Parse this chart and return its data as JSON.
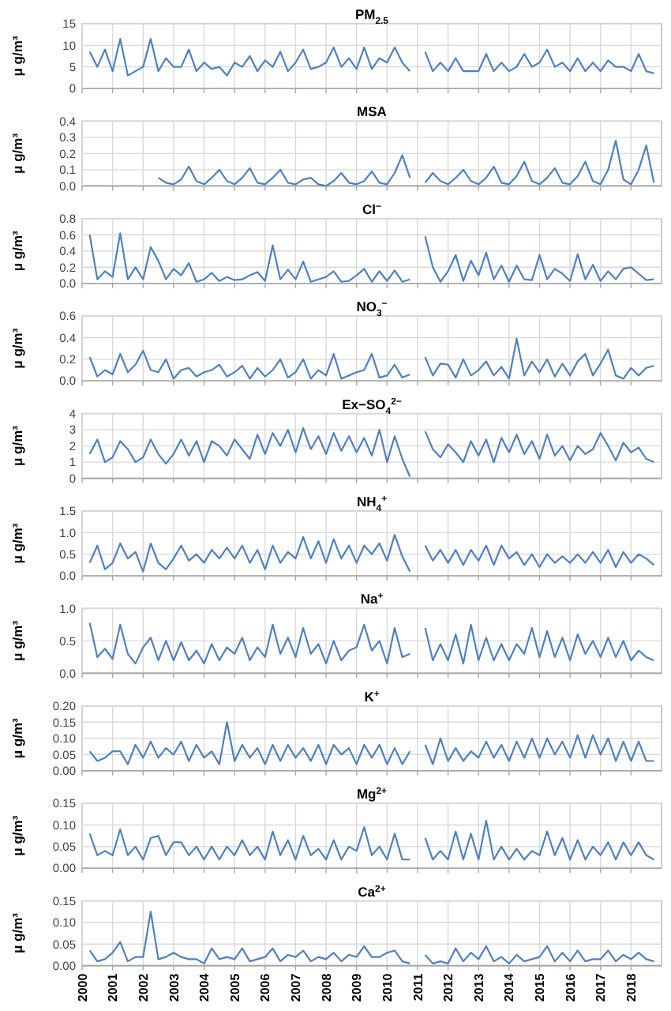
{
  "chart_data": [
    {
      "type": "line",
      "title": "PM$_{2.5}$",
      "ylabel": "μ g/m³",
      "grid": true,
      "tick_labels": "y",
      "xlim": [
        2000,
        2019
      ],
      "xticks": [
        2000,
        2001,
        2002,
        2003,
        2004,
        2005,
        2006,
        2007,
        2008,
        2009,
        2010,
        2011,
        2012,
        2013,
        2014,
        2015,
        2016,
        2017,
        2018
      ],
      "ylim": [
        0,
        15
      ],
      "yticks": [
        0,
        5,
        10,
        15
      ],
      "x": [
        2000.25,
        2000.5,
        2000.75,
        2001,
        2001.25,
        2001.5,
        2001.75,
        2002,
        2002.25,
        2002.5,
        2002.75,
        2003,
        2003.25,
        2003.5,
        2003.75,
        2004,
        2004.25,
        2004.5,
        2004.75,
        2005,
        2005.25,
        2005.5,
        2005.75,
        2006,
        2006.25,
        2006.5,
        2006.75,
        2007,
        2007.25,
        2007.5,
        2007.75,
        2008,
        2008.25,
        2008.5,
        2008.75,
        2009,
        2009.25,
        2009.5,
        2009.75,
        2010,
        2010.25,
        2010.5,
        2010.75,
        2011,
        2011.25,
        2011.5,
        2011.75,
        2012,
        2012.25,
        2012.5,
        2012.75,
        2013,
        2013.25,
        2013.5,
        2013.75,
        2014,
        2014.25,
        2014.5,
        2014.75,
        2015,
        2015.25,
        2015.5,
        2015.75,
        2016,
        2016.25,
        2016.5,
        2016.75,
        2017,
        2017.25,
        2017.5,
        2017.75,
        2018,
        2018.25,
        2018.5,
        2018.75
      ],
      "series": [
        {
          "color": "#4f81bd",
          "values": [
            8.5,
            5,
            9,
            4,
            11.5,
            3,
            4,
            5,
            11.5,
            4,
            7,
            5,
            5,
            9,
            4,
            6,
            4.5,
            5,
            3,
            6,
            5,
            7.5,
            4,
            6.5,
            5,
            8.5,
            4,
            6,
            9,
            4.5,
            5,
            6,
            9.5,
            5,
            7,
            4.5,
            9.5,
            4.5,
            7,
            6,
            9.5,
            6,
            4,
            null,
            8.5,
            4,
            6,
            4,
            7,
            4,
            4,
            4,
            8,
            4,
            6,
            4,
            5,
            8,
            5,
            6,
            9,
            5,
            6,
            4,
            7,
            4,
            6,
            4,
            6.5,
            5,
            5,
            4,
            8,
            4,
            3.5
          ]
        }
      ]
    },
    {
      "type": "line",
      "title": "MSA",
      "ylabel": "μ g/m³",
      "grid": true,
      "tick_labels": "y",
      "xlim": [
        2000,
        2019
      ],
      "xticks": [
        2000,
        2001,
        2002,
        2003,
        2004,
        2005,
        2006,
        2007,
        2008,
        2009,
        2010,
        2011,
        2012,
        2013,
        2014,
        2015,
        2016,
        2017,
        2018
      ],
      "ylim": [
        0,
        0.4
      ],
      "yticks": [
        {
          "value": 0,
          "label": "0.0"
        },
        {
          "value": 0.1,
          "label": "0.1"
        },
        {
          "value": 0.2,
          "label": "0.2"
        },
        {
          "value": 0.3,
          "label": "0.3"
        },
        {
          "value": 0.4,
          "label": "0.4"
        }
      ],
      "x": [
        2002.5,
        2002.75,
        2003,
        2003.25,
        2003.5,
        2003.75,
        2004,
        2004.25,
        2004.5,
        2004.75,
        2005,
        2005.25,
        2005.5,
        2005.75,
        2006,
        2006.25,
        2006.5,
        2006.75,
        2007,
        2007.25,
        2007.5,
        2007.75,
        2008,
        2008.25,
        2008.5,
        2008.75,
        2009,
        2009.25,
        2009.5,
        2009.75,
        2010,
        2010.25,
        2010.5,
        2010.75,
        2011,
        2011.25,
        2011.5,
        2011.75,
        2012,
        2012.25,
        2012.5,
        2012.75,
        2013,
        2013.25,
        2013.5,
        2013.75,
        2014,
        2014.25,
        2014.5,
        2014.75,
        2015,
        2015.25,
        2015.5,
        2015.75,
        2016,
        2016.25,
        2016.5,
        2016.75,
        2017,
        2017.25,
        2017.5,
        2017.75,
        2018,
        2018.25,
        2018.5,
        2018.75
      ],
      "series": [
        {
          "color": "#4f81bd",
          "values": [
            0.05,
            0.02,
            0.01,
            0.04,
            0.12,
            0.03,
            0.01,
            0.05,
            0.1,
            0.03,
            0.01,
            0.05,
            0.11,
            0.02,
            0.01,
            0.05,
            0.1,
            0.02,
            0.01,
            0.04,
            0.05,
            0.01,
            0,
            0.03,
            0.08,
            0.02,
            0.01,
            0.03,
            0.09,
            0.02,
            0.01,
            0.08,
            0.19,
            0.05,
            null,
            0.02,
            0.08,
            0.03,
            0.01,
            0.05,
            0.1,
            0.03,
            0.01,
            0.05,
            0.12,
            0.02,
            0.01,
            0.06,
            0.15,
            0.03,
            0.01,
            0.05,
            0.11,
            0.02,
            0.01,
            0.06,
            0.15,
            0.03,
            0.01,
            0.1,
            0.28,
            0.04,
            0.01,
            0.1,
            0.25,
            0.02
          ]
        }
      ]
    },
    {
      "type": "line",
      "title": "Cl$^{−}$",
      "ylabel": "μ g/m³",
      "grid": true,
      "tick_labels": "y",
      "xlim": [
        2000,
        2019
      ],
      "xticks": [
        2000,
        2001,
        2002,
        2003,
        2004,
        2005,
        2006,
        2007,
        2008,
        2009,
        2010,
        2011,
        2012,
        2013,
        2014,
        2015,
        2016,
        2017,
        2018
      ],
      "ylim": [
        0,
        0.8
      ],
      "yticks": [
        {
          "value": 0,
          "label": "0.0"
        },
        {
          "value": 0.2,
          "label": "0.2"
        },
        {
          "value": 0.4,
          "label": "0.4"
        },
        {
          "value": 0.6,
          "label": "0.6"
        },
        {
          "value": 0.8,
          "label": "0.8"
        }
      ],
      "x": [
        2000.25,
        2000.5,
        2000.75,
        2001,
        2001.25,
        2001.5,
        2001.75,
        2002,
        2002.25,
        2002.5,
        2002.75,
        2003,
        2003.25,
        2003.5,
        2003.75,
        2004,
        2004.25,
        2004.5,
        2004.75,
        2005,
        2005.25,
        2005.5,
        2005.75,
        2006,
        2006.25,
        2006.5,
        2006.75,
        2007,
        2007.25,
        2007.5,
        2007.75,
        2008,
        2008.25,
        2008.5,
        2008.75,
        2009,
        2009.25,
        2009.5,
        2009.75,
        2010,
        2010.25,
        2010.5,
        2010.75,
        2011,
        2011.25,
        2011.5,
        2011.75,
        2012,
        2012.25,
        2012.5,
        2012.75,
        2013,
        2013.25,
        2013.5,
        2013.75,
        2014,
        2014.25,
        2014.5,
        2014.75,
        2015,
        2015.25,
        2015.5,
        2015.75,
        2016,
        2016.25,
        2016.5,
        2016.75,
        2017,
        2017.25,
        2017.5,
        2017.75,
        2018,
        2018.25,
        2018.5,
        2018.75
      ],
      "series": [
        {
          "color": "#4f81bd",
          "values": [
            0.6,
            0.05,
            0.15,
            0.08,
            0.62,
            0.05,
            0.2,
            0.05,
            0.45,
            0.28,
            0.05,
            0.18,
            0.1,
            0.25,
            0.02,
            0.05,
            0.13,
            0.03,
            0.08,
            0.04,
            0.05,
            0.1,
            0.14,
            0.03,
            0.47,
            0.05,
            0.17,
            0.05,
            0.27,
            0.02,
            0.05,
            0.08,
            0.15,
            0.02,
            0.03,
            0.1,
            0.18,
            0.02,
            0.15,
            0.03,
            0.16,
            0.02,
            0.05,
            null,
            0.58,
            0.2,
            0.02,
            0.15,
            0.35,
            0.03,
            0.28,
            0.1,
            0.38,
            0.05,
            0.22,
            0.02,
            0.22,
            0.05,
            0.04,
            0.35,
            0.05,
            0.18,
            0.12,
            0.03,
            0.36,
            0.05,
            0.23,
            0.03,
            0.15,
            0.05,
            0.18,
            0.2,
            0.12,
            0.04,
            0.05
          ]
        }
      ]
    },
    {
      "type": "line",
      "title": "NO$_{3}$$^{−}$",
      "ylabel": "μ g/m³",
      "grid": true,
      "tick_labels": "y",
      "xlim": [
        2000,
        2019
      ],
      "xticks": [
        2000,
        2001,
        2002,
        2003,
        2004,
        2005,
        2006,
        2007,
        2008,
        2009,
        2010,
        2011,
        2012,
        2013,
        2014,
        2015,
        2016,
        2017,
        2018
      ],
      "ylim": [
        0,
        0.6
      ],
      "yticks": [
        {
          "value": 0,
          "label": "0.0"
        },
        {
          "value": 0.2,
          "label": "0.2"
        },
        {
          "value": 0.4,
          "label": "0.4"
        },
        {
          "value": 0.6,
          "label": "0.6"
        }
      ],
      "x": [
        2000.25,
        2000.5,
        2000.75,
        2001,
        2001.25,
        2001.5,
        2001.75,
        2002,
        2002.25,
        2002.5,
        2002.75,
        2003,
        2003.25,
        2003.5,
        2003.75,
        2004,
        2004.25,
        2004.5,
        2004.75,
        2005,
        2005.25,
        2005.5,
        2005.75,
        2006,
        2006.25,
        2006.5,
        2006.75,
        2007,
        2007.25,
        2007.5,
        2007.75,
        2008,
        2008.25,
        2008.5,
        2008.75,
        2009,
        2009.25,
        2009.5,
        2009.75,
        2010,
        2010.25,
        2010.5,
        2010.75,
        2011,
        2011.25,
        2011.5,
        2011.75,
        2012,
        2012.25,
        2012.5,
        2012.75,
        2013,
        2013.25,
        2013.5,
        2013.75,
        2014,
        2014.25,
        2014.5,
        2014.75,
        2015,
        2015.25,
        2015.5,
        2015.75,
        2016,
        2016.25,
        2016.5,
        2016.75,
        2017,
        2017.25,
        2017.5,
        2017.75,
        2018,
        2018.25,
        2018.5,
        2018.75
      ],
      "series": [
        {
          "color": "#4f81bd",
          "values": [
            0.22,
            0.04,
            0.1,
            0.06,
            0.25,
            0.08,
            0.15,
            0.28,
            0.1,
            0.08,
            0.2,
            0.02,
            0.1,
            0.12,
            0.04,
            0.08,
            0.1,
            0.15,
            0.04,
            0.08,
            0.14,
            0.02,
            0.12,
            0.04,
            0.1,
            0.2,
            0.03,
            0.08,
            0.2,
            0.02,
            0.1,
            0.05,
            0.25,
            0.02,
            0.05,
            0.08,
            0.1,
            0.25,
            0.03,
            0.05,
            0.15,
            0.03,
            0.06,
            null,
            0.22,
            0.05,
            0.16,
            0.15,
            0.03,
            0.2,
            0.05,
            0.1,
            0.18,
            0.05,
            0.13,
            0.02,
            0.39,
            0.05,
            0.18,
            0.08,
            0.2,
            0.04,
            0.16,
            0.05,
            0.18,
            0.25,
            0.05,
            0.16,
            0.29,
            0.05,
            0.02,
            0.12,
            0.05,
            0.12,
            0.14
          ]
        }
      ]
    },
    {
      "type": "line",
      "title": "Ex−SO$_{4}$$^{2−}$",
      "ylabel": "μ g/m³",
      "grid": true,
      "tick_labels": "y",
      "xlim": [
        2000,
        2019
      ],
      "xticks": [
        2000,
        2001,
        2002,
        2003,
        2004,
        2005,
        2006,
        2007,
        2008,
        2009,
        2010,
        2011,
        2012,
        2013,
        2014,
        2015,
        2016,
        2017,
        2018
      ],
      "ylim": [
        0,
        4
      ],
      "yticks": [
        0,
        1,
        2,
        3,
        4
      ],
      "x": [
        2000.25,
        2000.5,
        2000.75,
        2001,
        2001.25,
        2001.5,
        2001.75,
        2002,
        2002.25,
        2002.5,
        2002.75,
        2003,
        2003.25,
        2003.5,
        2003.75,
        2004,
        2004.25,
        2004.5,
        2004.75,
        2005,
        2005.25,
        2005.5,
        2005.75,
        2006,
        2006.25,
        2006.5,
        2006.75,
        2007,
        2007.25,
        2007.5,
        2007.75,
        2008,
        2008.25,
        2008.5,
        2008.75,
        2009,
        2009.25,
        2009.5,
        2009.75,
        2010,
        2010.25,
        2010.5,
        2010.75,
        2011,
        2011.25,
        2011.5,
        2011.75,
        2012,
        2012.25,
        2012.5,
        2012.75,
        2013,
        2013.25,
        2013.5,
        2013.75,
        2014,
        2014.25,
        2014.5,
        2014.75,
        2015,
        2015.25,
        2015.5,
        2015.75,
        2016,
        2016.25,
        2016.5,
        2016.75,
        2017,
        2017.25,
        2017.5,
        2017.75,
        2018,
        2018.25,
        2018.5,
        2018.75
      ],
      "series": [
        {
          "color": "#4f81bd",
          "values": [
            1.5,
            2.4,
            1,
            1.3,
            2.3,
            1.8,
            1,
            1.3,
            2.4,
            1.5,
            0.9,
            1.5,
            2.4,
            1.4,
            2.3,
            1,
            2.3,
            2,
            1.4,
            2.4,
            1.8,
            1.2,
            2.7,
            1.5,
            2.8,
            2,
            3,
            1.6,
            3.1,
            1.8,
            2.6,
            1.5,
            2.8,
            1.7,
            2.6,
            1.6,
            2.5,
            1.4,
            3,
            1,
            2.6,
            1.2,
            0.1,
            null,
            2.9,
            1.8,
            1.3,
            2.1,
            1.6,
            1,
            2.3,
            1.4,
            2.4,
            1,
            2.5,
            1.6,
            2.7,
            1.5,
            2.3,
            1.2,
            2.7,
            1.4,
            2,
            1.1,
            2,
            1.5,
            1.8,
            2.8,
            2,
            1.1,
            2.2,
            1.6,
            1.9,
            1.2,
            1
          ]
        }
      ]
    },
    {
      "type": "line",
      "title": "NH$_{4}$$^{+}$",
      "ylabel": "μ g/m³",
      "grid": true,
      "tick_labels": "y",
      "xlim": [
        2000,
        2019
      ],
      "xticks": [
        2000,
        2001,
        2002,
        2003,
        2004,
        2005,
        2006,
        2007,
        2008,
        2009,
        2010,
        2011,
        2012,
        2013,
        2014,
        2015,
        2016,
        2017,
        2018
      ],
      "ylim": [
        0,
        1.5
      ],
      "yticks": [
        {
          "value": 0,
          "label": "0.0"
        },
        {
          "value": 0.5,
          "label": "0.5"
        },
        {
          "value": 1,
          "label": "1.0"
        },
        {
          "value": 1.5,
          "label": "1.5"
        }
      ],
      "x": [
        2000.25,
        2000.5,
        2000.75,
        2001,
        2001.25,
        2001.5,
        2001.75,
        2002,
        2002.25,
        2002.5,
        2002.75,
        2003,
        2003.25,
        2003.5,
        2003.75,
        2004,
        2004.25,
        2004.5,
        2004.75,
        2005,
        2005.25,
        2005.5,
        2005.75,
        2006,
        2006.25,
        2006.5,
        2006.75,
        2007,
        2007.25,
        2007.5,
        2007.75,
        2008,
        2008.25,
        2008.5,
        2008.75,
        2009,
        2009.25,
        2009.5,
        2009.75,
        2010,
        2010.25,
        2010.5,
        2010.75,
        2011,
        2011.25,
        2011.5,
        2011.75,
        2012,
        2012.25,
        2012.5,
        2012.75,
        2013,
        2013.25,
        2013.5,
        2013.75,
        2014,
        2014.25,
        2014.5,
        2014.75,
        2015,
        2015.25,
        2015.5,
        2015.75,
        2016,
        2016.25,
        2016.5,
        2016.75,
        2017,
        2017.25,
        2017.5,
        2017.75,
        2018,
        2018.25,
        2018.5,
        2018.75
      ],
      "series": [
        {
          "color": "#4f81bd",
          "values": [
            0.3,
            0.7,
            0.15,
            0.3,
            0.75,
            0.4,
            0.55,
            0.1,
            0.75,
            0.3,
            0.15,
            0.4,
            0.7,
            0.35,
            0.5,
            0.3,
            0.6,
            0.4,
            0.65,
            0.4,
            0.7,
            0.3,
            0.6,
            0.15,
            0.7,
            0.3,
            0.55,
            0.4,
            0.9,
            0.4,
            0.8,
            0.3,
            0.85,
            0.4,
            0.7,
            0.3,
            0.7,
            0.5,
            0.75,
            0.35,
            0.95,
            0.45,
            0.1,
            null,
            0.7,
            0.35,
            0.6,
            0.3,
            0.6,
            0.25,
            0.6,
            0.35,
            0.7,
            0.25,
            0.7,
            0.4,
            0.55,
            0.25,
            0.5,
            0.2,
            0.5,
            0.3,
            0.45,
            0.3,
            0.5,
            0.3,
            0.55,
            0.3,
            0.6,
            0.2,
            0.55,
            0.3,
            0.5,
            0.4,
            0.25
          ]
        }
      ]
    },
    {
      "type": "line",
      "title": "Na$^{+}$",
      "ylabel": "μ g/m³",
      "grid": true,
      "tick_labels": "y",
      "xlim": [
        2000,
        2019
      ],
      "xticks": [
        2000,
        2001,
        2002,
        2003,
        2004,
        2005,
        2006,
        2007,
        2008,
        2009,
        2010,
        2011,
        2012,
        2013,
        2014,
        2015,
        2016,
        2017,
        2018
      ],
      "ylim": [
        0,
        1
      ],
      "yticks": [
        {
          "value": 0,
          "label": "0.0"
        },
        {
          "value": 0.5,
          "label": "0.5"
        },
        {
          "value": 1,
          "label": "1.0"
        }
      ],
      "x": [
        2000.25,
        2000.5,
        2000.75,
        2001,
        2001.25,
        2001.5,
        2001.75,
        2002,
        2002.25,
        2002.5,
        2002.75,
        2003,
        2003.25,
        2003.5,
        2003.75,
        2004,
        2004.25,
        2004.5,
        2004.75,
        2005,
        2005.25,
        2005.5,
        2005.75,
        2006,
        2006.25,
        2006.5,
        2006.75,
        2007,
        2007.25,
        2007.5,
        2007.75,
        2008,
        2008.25,
        2008.5,
        2008.75,
        2009,
        2009.25,
        2009.5,
        2009.75,
        2010,
        2010.25,
        2010.5,
        2010.75,
        2011,
        2011.25,
        2011.5,
        2011.75,
        2012,
        2012.25,
        2012.5,
        2012.75,
        2013,
        2013.25,
        2013.5,
        2013.75,
        2014,
        2014.25,
        2014.5,
        2014.75,
        2015,
        2015.25,
        2015.5,
        2015.75,
        2016,
        2016.25,
        2016.5,
        2016.75,
        2017,
        2017.25,
        2017.5,
        2017.75,
        2018,
        2018.25,
        2018.5,
        2018.75
      ],
      "series": [
        {
          "color": "#4f81bd",
          "values": [
            0.78,
            0.25,
            0.38,
            0.22,
            0.75,
            0.3,
            0.15,
            0.4,
            0.55,
            0.2,
            0.5,
            0.2,
            0.48,
            0.2,
            0.35,
            0.15,
            0.45,
            0.2,
            0.4,
            0.3,
            0.55,
            0.2,
            0.4,
            0.25,
            0.75,
            0.3,
            0.55,
            0.25,
            0.7,
            0.3,
            0.45,
            0.15,
            0.5,
            0.2,
            0.35,
            0.4,
            0.75,
            0.35,
            0.5,
            0.15,
            0.7,
            0.25,
            0.3,
            null,
            0.7,
            0.2,
            0.45,
            0.2,
            0.6,
            0.15,
            0.75,
            0.2,
            0.55,
            0.2,
            0.45,
            0.2,
            0.45,
            0.3,
            0.7,
            0.25,
            0.65,
            0.25,
            0.55,
            0.2,
            0.6,
            0.3,
            0.5,
            0.25,
            0.55,
            0.25,
            0.5,
            0.2,
            0.35,
            0.25,
            0.2
          ]
        }
      ]
    },
    {
      "type": "line",
      "title": "K$^{+}$",
      "ylabel": "μ g/m³",
      "grid": true,
      "tick_labels": "y",
      "xlim": [
        2000,
        2019
      ],
      "xticks": [
        2000,
        2001,
        2002,
        2003,
        2004,
        2005,
        2006,
        2007,
        2008,
        2009,
        2010,
        2011,
        2012,
        2013,
        2014,
        2015,
        2016,
        2017,
        2018
      ],
      "ylim": [
        0,
        0.2
      ],
      "yticks": [
        {
          "value": 0,
          "label": "0.00"
        },
        {
          "value": 0.05,
          "label": "0.05"
        },
        {
          "value": 0.1,
          "label": "0.10"
        },
        {
          "value": 0.15,
          "label": "0.15"
        },
        {
          "value": 0.2,
          "label": "0.20"
        }
      ],
      "x": [
        2000.25,
        2000.5,
        2000.75,
        2001,
        2001.25,
        2001.5,
        2001.75,
        2002,
        2002.25,
        2002.5,
        2002.75,
        2003,
        2003.25,
        2003.5,
        2003.75,
        2004,
        2004.25,
        2004.5,
        2004.75,
        2005,
        2005.25,
        2005.5,
        2005.75,
        2006,
        2006.25,
        2006.5,
        2006.75,
        2007,
        2007.25,
        2007.5,
        2007.75,
        2008,
        2008.25,
        2008.5,
        2008.75,
        2009,
        2009.25,
        2009.5,
        2009.75,
        2010,
        2010.25,
        2010.5,
        2010.75,
        2011,
        2011.25,
        2011.5,
        2011.75,
        2012,
        2012.25,
        2012.5,
        2012.75,
        2013,
        2013.25,
        2013.5,
        2013.75,
        2014,
        2014.25,
        2014.5,
        2014.75,
        2015,
        2015.25,
        2015.5,
        2015.75,
        2016,
        2016.25,
        2016.5,
        2016.75,
        2017,
        2017.25,
        2017.5,
        2017.75,
        2018,
        2018.25,
        2018.5,
        2018.75
      ],
      "series": [
        {
          "color": "#4f81bd",
          "values": [
            0.06,
            0.03,
            0.04,
            0.06,
            0.06,
            0.02,
            0.08,
            0.04,
            0.09,
            0.04,
            0.07,
            0.05,
            0.09,
            0.03,
            0.08,
            0.04,
            0.06,
            0.02,
            0.15,
            0.03,
            0.08,
            0.04,
            0.07,
            0.02,
            0.08,
            0.03,
            0.08,
            0.04,
            0.07,
            0.03,
            0.08,
            0.02,
            0.08,
            0.05,
            0.07,
            0.02,
            0.08,
            0.04,
            0.08,
            0.02,
            0.07,
            0.02,
            0.06,
            null,
            0.08,
            0.02,
            0.1,
            0.03,
            0.07,
            0.03,
            0.06,
            0.04,
            0.09,
            0.04,
            0.08,
            0.03,
            0.09,
            0.04,
            0.1,
            0.04,
            0.1,
            0.05,
            0.09,
            0.04,
            0.11,
            0.04,
            0.11,
            0.05,
            0.1,
            0.03,
            0.09,
            0.03,
            0.09,
            0.03,
            0.03
          ]
        }
      ]
    },
    {
      "type": "line",
      "title": "Mg$^{2+}$",
      "ylabel": "μ g/m³",
      "grid": true,
      "tick_labels": "y",
      "xlim": [
        2000,
        2019
      ],
      "xticks": [
        2000,
        2001,
        2002,
        2003,
        2004,
        2005,
        2006,
        2007,
        2008,
        2009,
        2010,
        2011,
        2012,
        2013,
        2014,
        2015,
        2016,
        2017,
        2018
      ],
      "ylim": [
        0,
        0.15
      ],
      "yticks": [
        {
          "value": 0,
          "label": "0.00"
        },
        {
          "value": 0.05,
          "label": "0.05"
        },
        {
          "value": 0.1,
          "label": "0.10"
        },
        {
          "value": 0.15,
          "label": "0.15"
        }
      ],
      "x": [
        2000.25,
        2000.5,
        2000.75,
        2001,
        2001.25,
        2001.5,
        2001.75,
        2002,
        2002.25,
        2002.5,
        2002.75,
        2003,
        2003.25,
        2003.5,
        2003.75,
        2004,
        2004.25,
        2004.5,
        2004.75,
        2005,
        2005.25,
        2005.5,
        2005.75,
        2006,
        2006.25,
        2006.5,
        2006.75,
        2007,
        2007.25,
        2007.5,
        2007.75,
        2008,
        2008.25,
        2008.5,
        2008.75,
        2009,
        2009.25,
        2009.5,
        2009.75,
        2010,
        2010.25,
        2010.5,
        2010.75,
        2011,
        2011.25,
        2011.5,
        2011.75,
        2012,
        2012.25,
        2012.5,
        2012.75,
        2013,
        2013.25,
        2013.5,
        2013.75,
        2014,
        2014.25,
        2014.5,
        2014.75,
        2015,
        2015.25,
        2015.5,
        2015.75,
        2016,
        2016.25,
        2016.5,
        2016.75,
        2017,
        2017.25,
        2017.5,
        2017.75,
        2018,
        2018.25,
        2018.5,
        2018.75
      ],
      "series": [
        {
          "color": "#4f81bd",
          "values": [
            0.08,
            0.03,
            0.04,
            0.03,
            0.09,
            0.03,
            0.05,
            0.02,
            0.07,
            0.075,
            0.03,
            0.06,
            0.06,
            0.03,
            0.05,
            0.02,
            0.05,
            0.02,
            0.05,
            0.03,
            0.065,
            0.03,
            0.05,
            0.02,
            0.085,
            0.03,
            0.065,
            0.02,
            0.075,
            0.03,
            0.045,
            0.02,
            0.065,
            0.02,
            0.05,
            0.04,
            0.095,
            0.03,
            0.05,
            0.02,
            0.08,
            0.02,
            0.02,
            null,
            0.07,
            0.02,
            0.04,
            0.02,
            0.085,
            0.02,
            0.08,
            0.02,
            0.11,
            0.02,
            0.05,
            0.02,
            0.045,
            0.02,
            0.04,
            0.03,
            0.085,
            0.03,
            0.07,
            0.02,
            0.065,
            0.02,
            0.05,
            0.03,
            0.06,
            0.02,
            0.06,
            0.03,
            0.06,
            0.03,
            0.02
          ]
        }
      ]
    },
    {
      "type": "line",
      "title": "Ca$^{2+}$",
      "ylabel": "μ g/m³",
      "grid": true,
      "xlim": [
        2000,
        2019
      ],
      "xticks": [
        2000,
        2001,
        2002,
        2003,
        2004,
        2005,
        2006,
        2007,
        2008,
        2009,
        2010,
        2011,
        2012,
        2013,
        2014,
        2015,
        2016,
        2017,
        2018
      ],
      "ylim": [
        0,
        0.15
      ],
      "yticks": [
        {
          "value": 0,
          "label": "0.00"
        },
        {
          "value": 0.05,
          "label": "0.05"
        },
        {
          "value": 0.1,
          "label": "0.10"
        },
        {
          "value": 0.15,
          "label": "0.15"
        }
      ],
      "x": [
        2000.25,
        2000.5,
        2000.75,
        2001,
        2001.25,
        2001.5,
        2001.75,
        2002,
        2002.25,
        2002.5,
        2002.75,
        2003,
        2003.25,
        2003.5,
        2003.75,
        2004,
        2004.25,
        2004.5,
        2004.75,
        2005,
        2005.25,
        2005.5,
        2005.75,
        2006,
        2006.25,
        2006.5,
        2006.75,
        2007,
        2007.25,
        2007.5,
        2007.75,
        2008,
        2008.25,
        2008.5,
        2008.75,
        2009,
        2009.25,
        2009.5,
        2009.75,
        2010,
        2010.25,
        2010.5,
        2010.75,
        2011,
        2011.25,
        2011.5,
        2011.75,
        2012,
        2012.25,
        2012.5,
        2012.75,
        2013,
        2013.25,
        2013.5,
        2013.75,
        2014,
        2014.25,
        2014.5,
        2014.75,
        2015,
        2015.25,
        2015.5,
        2015.75,
        2016,
        2016.25,
        2016.5,
        2016.75,
        2017,
        2017.25,
        2017.5,
        2017.75,
        2018,
        2018.25,
        2018.5,
        2018.75
      ],
      "series": [
        {
          "color": "#4f81bd",
          "values": [
            0.035,
            0.01,
            0.015,
            0.03,
            0.055,
            0.01,
            0.02,
            0.02,
            0.125,
            0.015,
            0.02,
            0.03,
            0.02,
            0.015,
            0.015,
            0.005,
            0.04,
            0.015,
            0.02,
            0.015,
            0.04,
            0.01,
            0.015,
            0.02,
            0.04,
            0.01,
            0.025,
            0.02,
            0.035,
            0.01,
            0.02,
            0.015,
            0.03,
            0.01,
            0.025,
            0.02,
            0.045,
            0.02,
            0.02,
            0.03,
            0.035,
            0.01,
            0.005,
            null,
            0.025,
            0.005,
            0.01,
            0.005,
            0.04,
            0.01,
            0.03,
            0.015,
            0.045,
            0.01,
            0.02,
            0.005,
            0.025,
            0.01,
            0.015,
            0.02,
            0.045,
            0.01,
            0.03,
            0.01,
            0.035,
            0.01,
            0.015,
            0.015,
            0.035,
            0.01,
            0.025,
            0.015,
            0.03,
            0.015,
            0.01
          ]
        }
      ]
    }
  ]
}
